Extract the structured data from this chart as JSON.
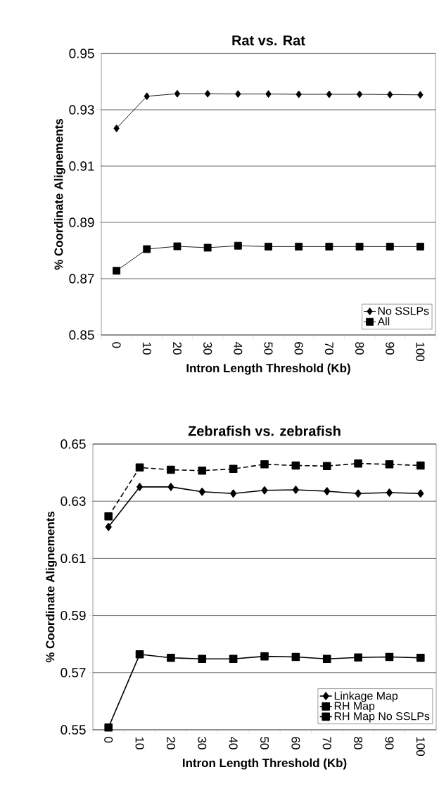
{
  "chart_data": [
    {
      "type": "line",
      "title": "Rat vs. Rat",
      "xlabel": "Intron Length Threshold (Kb)",
      "ylabel": "% Coordinate Alignements",
      "categories": [
        "0",
        "10",
        "20",
        "30",
        "40",
        "50",
        "60",
        "70",
        "80",
        "90",
        "100"
      ],
      "series": [
        {
          "name": "No SSLPs",
          "color": "#000000",
          "marker": "diamond",
          "line_style": "solid",
          "values": [
            0.9234,
            0.9348,
            0.9357,
            0.9357,
            0.9356,
            0.9356,
            0.9355,
            0.9355,
            0.9355,
            0.9354,
            0.9353
          ]
        },
        {
          "name": "All",
          "color": "#000000",
          "marker": "square",
          "line_style": "solid",
          "values": [
            0.8728,
            0.8805,
            0.8815,
            0.881,
            0.8817,
            0.8814,
            0.8814,
            0.8814,
            0.8814,
            0.8814,
            0.8814
          ]
        }
      ],
      "ylim": [
        0.85,
        0.95
      ],
      "yticks": [
        0.85,
        0.87,
        0.89,
        0.91,
        0.93,
        0.95
      ],
      "grid": "y",
      "legend": "bottom right"
    },
    {
      "type": "line",
      "title": "Zebrafish vs. zebrafish",
      "xlabel": "Intron Length Threshold (Kb)",
      "ylabel": "% Coordinate Alignements",
      "categories": [
        "0",
        "10",
        "20",
        "30",
        "40",
        "50",
        "60",
        "70",
        "80",
        "90",
        "100"
      ],
      "series": [
        {
          "name": "Linkage Map",
          "color": "#000000",
          "marker": "diamond",
          "line_style": "solid",
          "values": [
            0.621,
            0.635,
            0.635,
            0.6333,
            0.6327,
            0.6338,
            0.634,
            0.6335,
            0.6327,
            0.633,
            0.6327
          ]
        },
        {
          "name": "RH Map",
          "color": "#000000",
          "marker": "square",
          "line_style": "solid",
          "values": [
            0.5508,
            0.5764,
            0.5752,
            0.5748,
            0.5748,
            0.5757,
            0.5755,
            0.5748,
            0.5753,
            0.5755,
            0.5752
          ]
        },
        {
          "name": "RH Map No SSLPs",
          "color": "#000000",
          "marker": "square",
          "line_style": "dashed",
          "values": [
            0.6247,
            0.6418,
            0.641,
            0.6407,
            0.6413,
            0.6429,
            0.6425,
            0.6423,
            0.6432,
            0.6429,
            0.6425
          ]
        }
      ],
      "ylim": [
        0.55,
        0.65
      ],
      "yticks": [
        0.55,
        0.57,
        0.59,
        0.61,
        0.63,
        0.65
      ],
      "grid": "y",
      "legend": "bottom right"
    }
  ]
}
